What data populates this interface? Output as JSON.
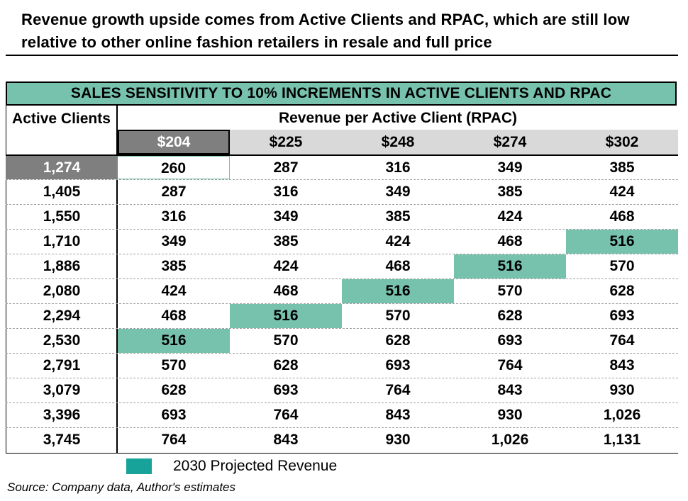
{
  "headline": "Revenue growth upside comes from Active Clients and RPAC, which are still low relative to other online fashion retailers in resale and full price",
  "colors": {
    "highlight": "#77c2ad",
    "legend_swatch": "#17a39a",
    "base_header": "#7f7f7f",
    "header_band": "#d9d9d9"
  },
  "chart_data": {
    "type": "table",
    "title": "SALES SENSITIVITY TO 10%  INCREMENTS IN ACTIVE CLIENTS AND RPAC",
    "row_header": "Active Clients",
    "column_header": "Revenue per Active Client (RPAC)",
    "columns": [
      "$204",
      "$225",
      "$248",
      "$274",
      "$302"
    ],
    "base_column_index": 0,
    "base_row_index": 0,
    "rows": [
      {
        "active_clients": "1,274",
        "values": [
          "260",
          "287",
          "316",
          "349",
          "385"
        ],
        "highlight": null
      },
      {
        "active_clients": "1,405",
        "values": [
          "287",
          "316",
          "349",
          "385",
          "424"
        ],
        "highlight": null
      },
      {
        "active_clients": "1,550",
        "values": [
          "316",
          "349",
          "385",
          "424",
          "468"
        ],
        "highlight": null
      },
      {
        "active_clients": "1,710",
        "values": [
          "349",
          "385",
          "424",
          "468",
          "516"
        ],
        "highlight": 4
      },
      {
        "active_clients": "1,886",
        "values": [
          "385",
          "424",
          "468",
          "516",
          "570"
        ],
        "highlight": 3
      },
      {
        "active_clients": "2,080",
        "values": [
          "424",
          "468",
          "516",
          "570",
          "628"
        ],
        "highlight": 2
      },
      {
        "active_clients": "2,294",
        "values": [
          "468",
          "516",
          "570",
          "628",
          "693"
        ],
        "highlight": 1
      },
      {
        "active_clients": "2,530",
        "values": [
          "516",
          "570",
          "628",
          "693",
          "764"
        ],
        "highlight": 0
      },
      {
        "active_clients": "2,791",
        "values": [
          "570",
          "628",
          "693",
          "764",
          "843"
        ],
        "highlight": null
      },
      {
        "active_clients": "3,079",
        "values": [
          "628",
          "693",
          "764",
          "843",
          "930"
        ],
        "highlight": null
      },
      {
        "active_clients": "3,396",
        "values": [
          "693",
          "764",
          "843",
          "930",
          "1,026"
        ],
        "highlight": null
      },
      {
        "active_clients": "3,745",
        "values": [
          "764",
          "843",
          "930",
          "1,026",
          "1,131"
        ],
        "highlight": null
      }
    ],
    "legend": "2030 Projected Revenue"
  },
  "source": "Source: Company data, Author's estimates"
}
